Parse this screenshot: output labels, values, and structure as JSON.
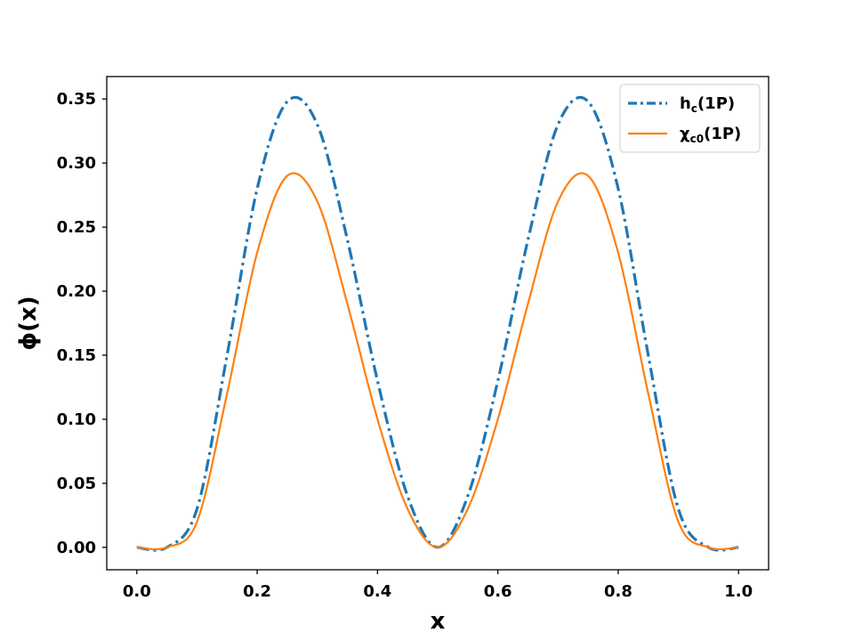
{
  "chart_data": {
    "type": "line",
    "title": "",
    "xlabel": "x",
    "ylabel": "ϕ(x)",
    "xlim": [
      -0.05,
      1.05
    ],
    "ylim": [
      -0.0175,
      0.3675
    ],
    "xticks": [
      0.0,
      0.2,
      0.4,
      0.6,
      0.8,
      1.0
    ],
    "xtick_labels": [
      "0.0",
      "0.2",
      "0.4",
      "0.6",
      "0.8",
      "1.0"
    ],
    "yticks": [
      0.0,
      0.05,
      0.1,
      0.15,
      0.2,
      0.25,
      0.3,
      0.35
    ],
    "ytick_labels": [
      "0.00",
      "0.05",
      "0.10",
      "0.15",
      "0.20",
      "0.25",
      "0.30",
      "0.35"
    ],
    "grid": false,
    "legend_position": "top-right",
    "series": [
      {
        "name": "h_c(1P)",
        "legend_main": "h",
        "legend_sub": "c",
        "legend_tail": "(1P)",
        "color": "#1f77b4",
        "style": "dashdot",
        "x": [
          0.0,
          0.05,
          0.1,
          0.15,
          0.2,
          0.25,
          0.3,
          0.35,
          0.4,
          0.45,
          0.5,
          0.55,
          0.6,
          0.65,
          0.7,
          0.75,
          0.8,
          0.85,
          0.9,
          0.95,
          1.0
        ],
        "y": [
          0.0,
          0.0,
          0.03,
          0.15,
          0.28,
          0.348,
          0.33,
          0.24,
          0.13,
          0.04,
          0.0,
          0.04,
          0.13,
          0.24,
          0.33,
          0.348,
          0.28,
          0.15,
          0.03,
          0.0,
          0.0
        ]
      },
      {
        "name": "χ_c0(1P)",
        "legend_main": "χ",
        "legend_sub": "c0",
        "legend_tail": "(1P)",
        "color": "#ff7f0e",
        "style": "solid",
        "x": [
          0.0,
          0.05,
          0.1,
          0.15,
          0.2,
          0.25,
          0.3,
          0.35,
          0.4,
          0.45,
          0.5,
          0.55,
          0.6,
          0.65,
          0.7,
          0.75,
          0.8,
          0.85,
          0.9,
          0.95,
          1.0
        ],
        "y": [
          0.0,
          0.0,
          0.02,
          0.12,
          0.23,
          0.29,
          0.27,
          0.19,
          0.1,
          0.03,
          0.0,
          0.03,
          0.1,
          0.19,
          0.27,
          0.29,
          0.23,
          0.12,
          0.02,
          0.0,
          0.0
        ]
      }
    ]
  }
}
